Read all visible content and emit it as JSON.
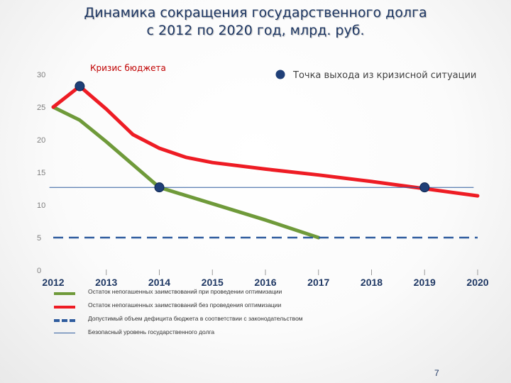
{
  "title_lines": [
    "Динамика сокращения государственного долга",
    "с 2012 по 2020 год, млрд. руб."
  ],
  "page_number": "7",
  "colors": {
    "green": "#6f9a3a",
    "red": "#ee1c24",
    "blue": "#2f5c9e",
    "marker": "#1f3f77",
    "axis_text": "#7f7f7f",
    "year_text": "#1f3864",
    "title": "#1f3864",
    "annotation_red": "#c00000"
  },
  "chart_data": {
    "type": "line",
    "title": "Динамика сокращения государственного долга с 2012 по 2020 год, млрд. руб.",
    "x": [
      "2012",
      "2013",
      "2014",
      "2015",
      "2016",
      "2017",
      "2018",
      "2019",
      "2020"
    ],
    "ylim": [
      0,
      30
    ],
    "yticks": [
      0,
      5,
      10,
      15,
      20,
      25,
      30
    ],
    "series": [
      {
        "name": "Остаток непогашенных заимствований при проведении оптимизации",
        "color": "#6f9a3a",
        "style": "solid",
        "points": [
          [
            2012,
            25
          ],
          [
            2012.5,
            23
          ],
          [
            2013,
            19.7
          ],
          [
            2014,
            12.7
          ],
          [
            2015,
            10.2
          ],
          [
            2016,
            7.7
          ],
          [
            2017,
            5
          ]
        ]
      },
      {
        "name": "Остаток непогашенных заимствований без проведения оптимизации",
        "color": "#ee1c24",
        "style": "solid",
        "points": [
          [
            2012,
            25
          ],
          [
            2012.5,
            28.2
          ],
          [
            2013,
            24.7
          ],
          [
            2013.5,
            20.8
          ],
          [
            2014,
            18.7
          ],
          [
            2014.5,
            17.3
          ],
          [
            2015,
            16.5
          ],
          [
            2016,
            15.5
          ],
          [
            2017,
            14.6
          ],
          [
            2018,
            13.6
          ],
          [
            2019,
            12.5
          ],
          [
            2020,
            11.4
          ]
        ]
      },
      {
        "name": "Допустимый объем дефицита бюджета в соответствии с законодательством",
        "color": "#2f5c9e",
        "style": "dashed",
        "points": [
          [
            2012,
            5
          ],
          [
            2020,
            5
          ]
        ]
      },
      {
        "name": "Безопасный уровень государственного долга",
        "color": "#2f5c9e",
        "style": "thin",
        "points": [
          [
            2012,
            12.7
          ],
          [
            2020,
            12.7
          ]
        ]
      }
    ],
    "markers": [
      {
        "x": 2012.5,
        "y": 28.2
      },
      {
        "x": 2014,
        "y": 12.7
      },
      {
        "x": 2019,
        "y": 12.7
      }
    ],
    "annotations": {
      "crisis": "Кризис бюджета",
      "exit_point": "Точка выхода из кризисной ситуации"
    },
    "legend": [
      {
        "label": "Остаток непогашенных заимствований при проведении оптимизации",
        "color": "#6f9a3a",
        "style": "solid"
      },
      {
        "label": "Остаток непогашенных заимствований без проведения оптимизации",
        "color": "#ee1c24",
        "style": "solid"
      },
      {
        "label": "Допустимый объем дефицита бюджета в соответствии с законодательством",
        "color": "#2f5c9e",
        "style": "dashed"
      },
      {
        "label": "Безопасный уровень государственного долга",
        "color": "#2f5c9e",
        "style": "thin"
      }
    ]
  }
}
